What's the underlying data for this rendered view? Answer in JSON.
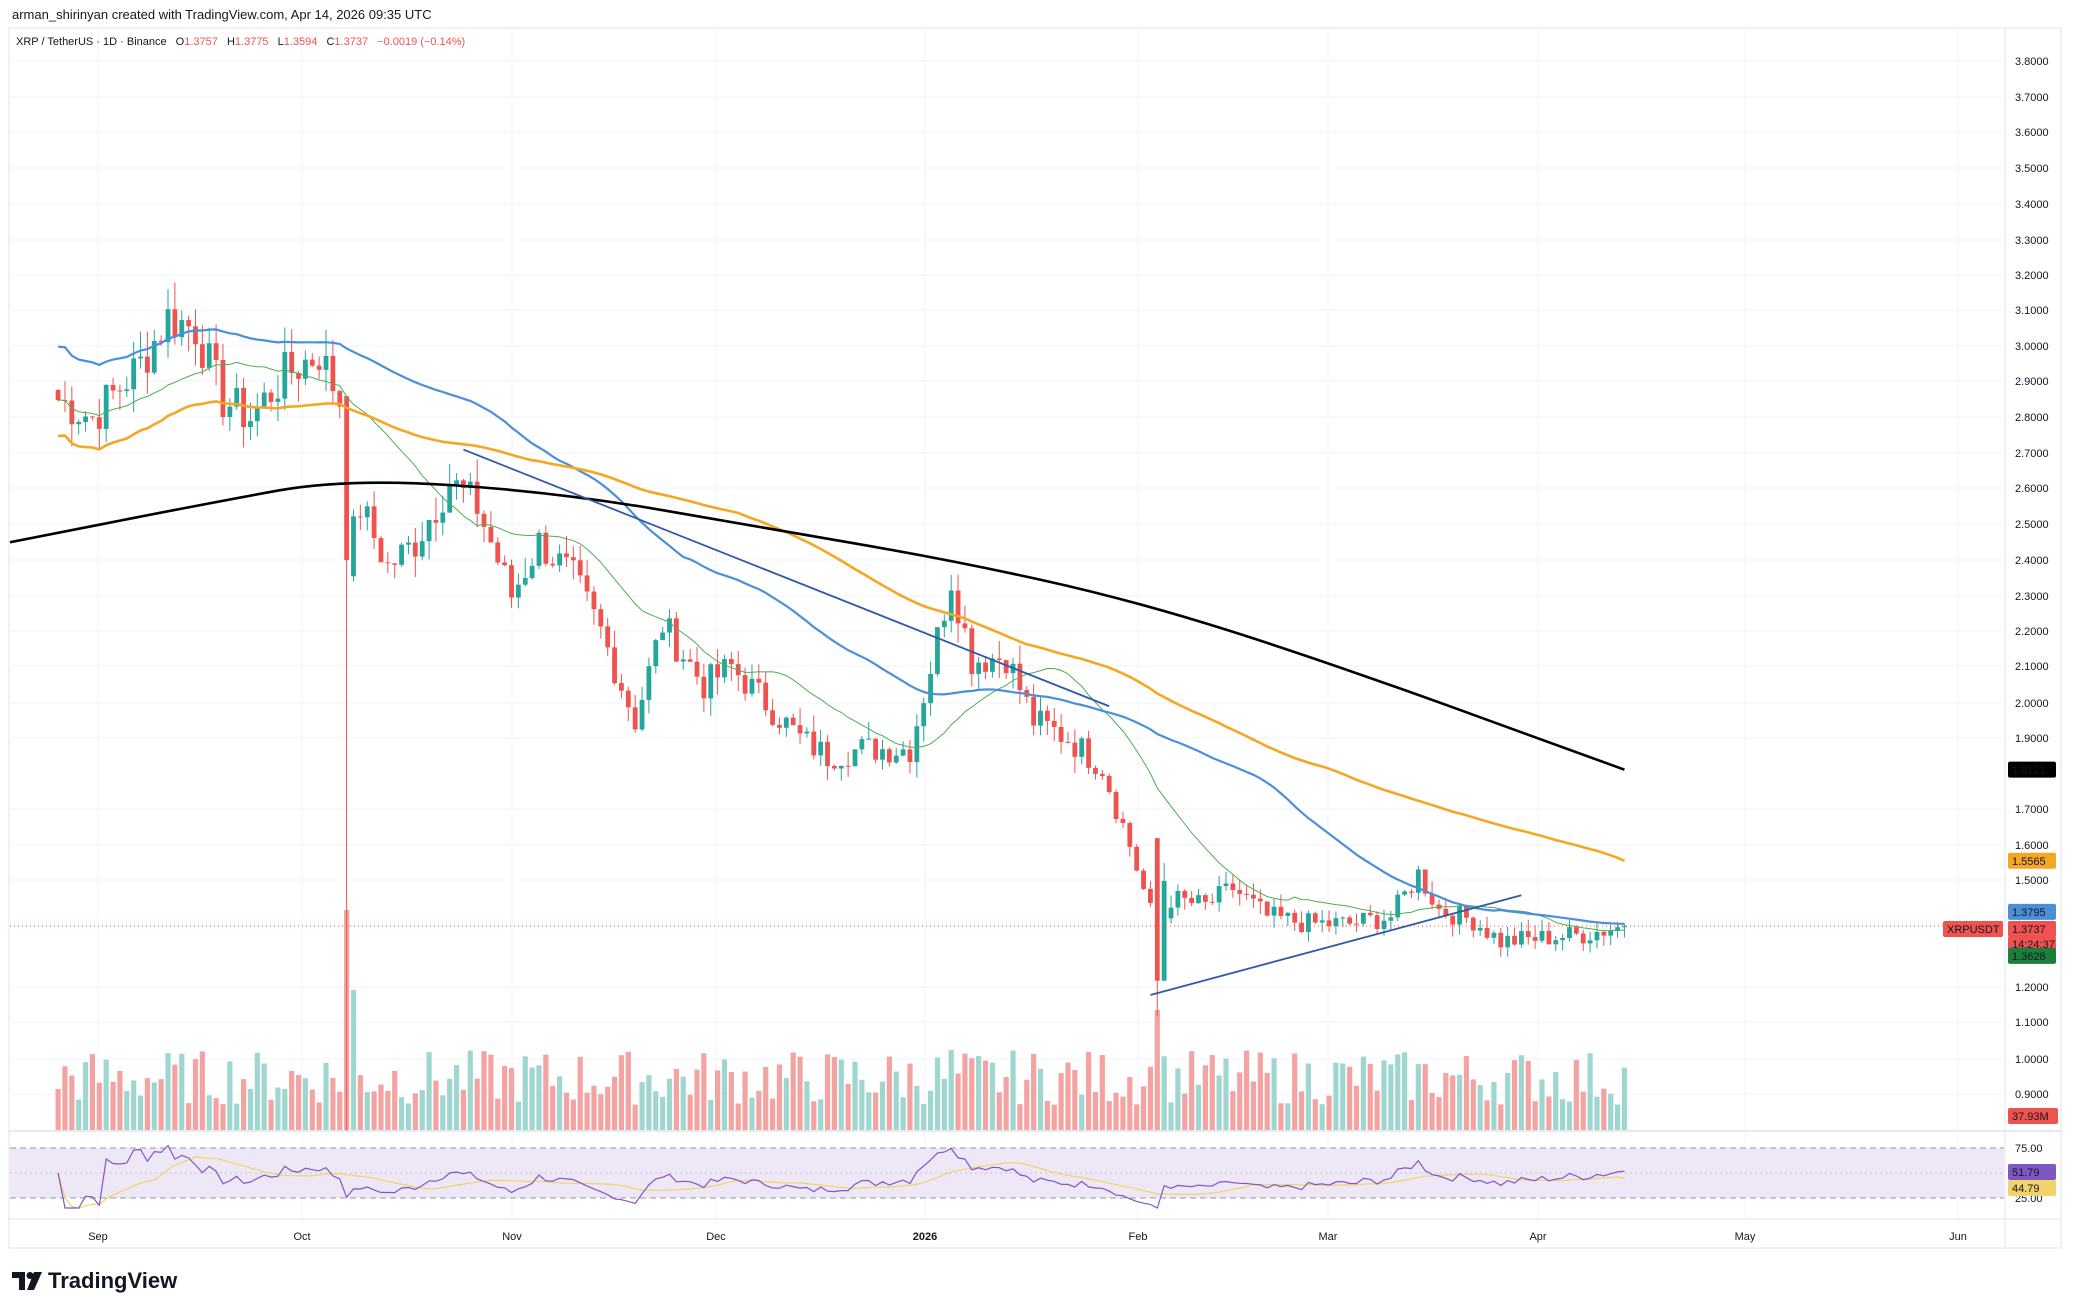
{
  "header": {
    "created_by": "arman_shirinyan created with TradingView.com, Apr 14, 2026 09:35 UTC"
  },
  "legend": {
    "symbol": "XRP / TetherUS · 1D · Binance",
    "open_label": "O",
    "open": "1.3757",
    "high_label": "H",
    "high": "1.3775",
    "low_label": "L",
    "low": "1.3594",
    "close_label": "C",
    "close": "1.3737",
    "change": "−0.0019 (−0.14%)"
  },
  "badges": {
    "ma200": "1.8121",
    "ma100": "1.5565",
    "ma50": "1.3795",
    "symbol_tag": "XRPUSDT",
    "price": "1.3737",
    "countdown": "14:24:37",
    "ma20": "1.3628",
    "volume": "37.93M",
    "rsi": "51.79",
    "rsi_ma": "44.79"
  },
  "colors": {
    "up": "#26a69a",
    "down": "#ef5350",
    "ma20": "#4caf50",
    "ma50": "#4a90d9",
    "ma100": "#f5a623",
    "ma200": "#000000",
    "trendline": "#2f5aa8",
    "rsi": "#7e57c2",
    "rsi_ma": "#f2d36b"
  },
  "chart_data": {
    "type": "candlestick",
    "symbol": "XRPUSDT",
    "timeframe": "1D",
    "y_ticks": [
      "3.8000",
      "3.7000",
      "3.6000",
      "3.5000",
      "3.4000",
      "3.3000",
      "3.2000",
      "3.1000",
      "3.0000",
      "2.9000",
      "2.8000",
      "2.7000",
      "2.6000",
      "2.5000",
      "2.4000",
      "2.3000",
      "2.2000",
      "2.1000",
      "2.0000",
      "1.9000",
      "1.7000",
      "1.6000",
      "1.5000",
      "1.2000",
      "1.1000",
      "1.0000",
      "0.9000"
    ],
    "x_ticks": [
      "Sep",
      "Oct",
      "Nov",
      "Dec",
      "2026",
      "Feb",
      "Mar",
      "Apr",
      "May",
      "Jun"
    ],
    "rsi_ticks": [
      "75.00",
      "25.00"
    ],
    "price_path": [
      [
        "2025-08-29",
        2.85
      ],
      [
        "2025-09-03",
        2.8
      ],
      [
        "2025-09-10",
        2.95
      ],
      [
        "2025-09-14",
        3.08
      ],
      [
        "2025-09-18",
        3.05
      ],
      [
        "2025-09-22",
        2.85
      ],
      [
        "2025-09-26",
        2.8
      ],
      [
        "2025-10-01",
        2.92
      ],
      [
        "2025-10-06",
        2.98
      ],
      [
        "2025-10-09",
        2.85
      ],
      [
        "2025-10-10",
        2.4
      ],
      [
        "2025-10-12",
        2.55
      ],
      [
        "2025-10-16",
        2.38
      ],
      [
        "2025-10-20",
        2.45
      ],
      [
        "2025-10-25",
        2.62
      ],
      [
        "2025-10-29",
        2.55
      ],
      [
        "2025-11-03",
        2.3
      ],
      [
        "2025-11-07",
        2.45
      ],
      [
        "2025-11-12",
        2.35
      ],
      [
        "2025-11-16",
        2.2
      ],
      [
        "2025-11-21",
        1.95
      ],
      [
        "2025-11-25",
        2.22
      ],
      [
        "2025-12-01",
        2.05
      ],
      [
        "2025-12-05",
        2.1
      ],
      [
        "2025-12-10",
        2.0
      ],
      [
        "2025-12-15",
        1.9
      ],
      [
        "2025-12-19",
        1.85
      ],
      [
        "2025-12-24",
        1.87
      ],
      [
        "2025-12-31",
        1.87
      ],
      [
        "2026-01-03",
        2.1
      ],
      [
        "2026-01-06",
        2.35
      ],
      [
        "2026-01-09",
        2.12
      ],
      [
        "2026-01-14",
        2.13
      ],
      [
        "2026-01-18",
        1.95
      ],
      [
        "2026-01-23",
        1.9
      ],
      [
        "2026-01-28",
        1.82
      ],
      [
        "2026-02-01",
        1.6
      ],
      [
        "2026-02-05",
        1.35
      ],
      [
        "2026-02-07",
        1.45
      ],
      [
        "2026-02-12",
        1.43
      ],
      [
        "2026-02-16",
        1.48
      ],
      [
        "2026-02-21",
        1.4
      ],
      [
        "2026-02-27",
        1.38
      ],
      [
        "2026-03-05",
        1.38
      ],
      [
        "2026-03-11",
        1.4
      ],
      [
        "2026-03-15",
        1.52
      ],
      [
        "2026-03-18",
        1.42
      ],
      [
        "2026-03-23",
        1.39
      ],
      [
        "2026-03-27",
        1.33
      ],
      [
        "2026-04-02",
        1.34
      ],
      [
        "2026-04-08",
        1.35
      ],
      [
        "2026-04-14",
        1.3737
      ]
    ],
    "moving_averages": [
      {
        "id": "ma200",
        "end_value": 1.8121
      },
      {
        "id": "ma100",
        "end_value": 1.5565
      },
      {
        "id": "ma50",
        "end_value": 1.3795
      },
      {
        "id": "ma20",
        "end_value": 1.3628
      }
    ],
    "trendlines": [
      {
        "from": [
          "2025-10-27",
          2.71
        ],
        "to": [
          "2026-01-29",
          1.99
        ]
      },
      {
        "from": [
          "2026-02-04",
          1.18
        ],
        "to": [
          "2026-03-30",
          1.46
        ]
      }
    ],
    "rsi": {
      "value": 51.79,
      "ma_value": 44.79,
      "upper": 75,
      "lower": 25
    },
    "last_volume": "37.93M",
    "grid": true
  }
}
